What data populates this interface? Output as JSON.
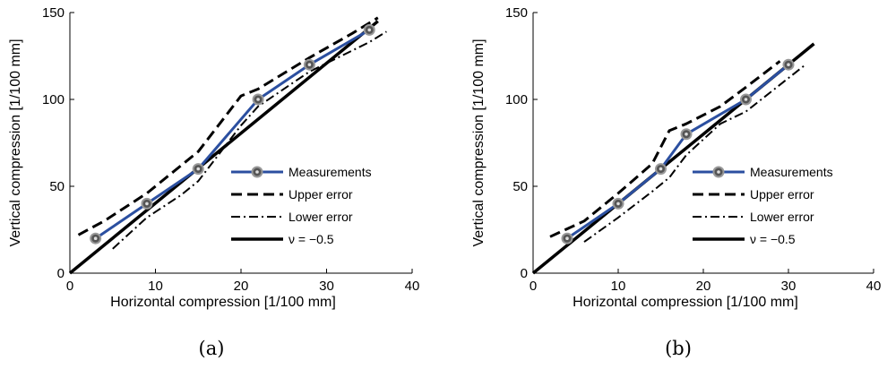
{
  "chart_data": [
    {
      "type": "line",
      "caption": "(a)",
      "xlabel": "Horizontal compression [1/100 mm]",
      "ylabel": "Vertical compression [1/100 mm]",
      "xlim": [
        0,
        40
      ],
      "ylim": [
        0,
        150
      ],
      "xticks": [
        "0",
        "10",
        "20",
        "30",
        "40"
      ],
      "yticks": [
        "0",
        "50",
        "100",
        "150"
      ],
      "grid": false,
      "legend_position": "lower-right",
      "series": [
        {
          "name": "Measurements",
          "style": "solid-marker",
          "color": "#2b4fa0",
          "x": [
            3,
            9,
            15,
            22,
            28,
            35
          ],
          "y": [
            20,
            40,
            60,
            100,
            120,
            140
          ]
        },
        {
          "name": "Upper error",
          "style": "dashed",
          "color": "#000000",
          "x": [
            1,
            4,
            9,
            13,
            15,
            20,
            22,
            28,
            33,
            36
          ],
          "y": [
            22,
            30,
            46,
            62,
            70,
            102,
            106,
            124,
            138,
            147
          ]
        },
        {
          "name": "Lower error",
          "style": "dashdot",
          "color": "#000000",
          "x": [
            5,
            9,
            13,
            15,
            20,
            22,
            28,
            35,
            37
          ],
          "y": [
            14,
            32,
            45,
            53,
            85,
            96,
            116,
            133,
            139
          ]
        },
        {
          "name": "ν = −0.5",
          "style": "solid-thick",
          "color": "#000000",
          "x": [
            0,
            36
          ],
          "y": [
            0,
            145
          ]
        }
      ]
    },
    {
      "type": "line",
      "caption": "(b)",
      "xlabel": "Horizontal compression [1/100 mm]",
      "ylabel": "Vertical compression [1/100 mm]",
      "xlim": [
        0,
        40
      ],
      "ylim": [
        0,
        150
      ],
      "xticks": [
        "0",
        "10",
        "20",
        "30",
        "40"
      ],
      "yticks": [
        "0",
        "50",
        "100",
        "150"
      ],
      "grid": false,
      "legend_position": "lower-right",
      "series": [
        {
          "name": "Measurements",
          "style": "solid-marker",
          "color": "#2b4fa0",
          "x": [
            4,
            10,
            15,
            18,
            25,
            30
          ],
          "y": [
            20,
            40,
            60,
            80,
            100,
            120
          ]
        },
        {
          "name": "Upper error",
          "style": "dashed",
          "color": "#000000",
          "x": [
            2,
            6,
            10,
            14,
            16,
            18,
            22,
            25,
            29
          ],
          "y": [
            21,
            30,
            46,
            63,
            82,
            86,
            96,
            107,
            122
          ]
        },
        {
          "name": "Lower error",
          "style": "dashdot",
          "color": "#000000",
          "x": [
            6,
            10,
            14,
            16,
            18,
            22,
            25,
            32
          ],
          "y": [
            18,
            32,
            47,
            55,
            68,
            86,
            93,
            120
          ]
        },
        {
          "name": "ν = −0.5",
          "style": "solid-thick",
          "color": "#000000",
          "x": [
            0,
            33
          ],
          "y": [
            0,
            132
          ]
        }
      ]
    }
  ]
}
